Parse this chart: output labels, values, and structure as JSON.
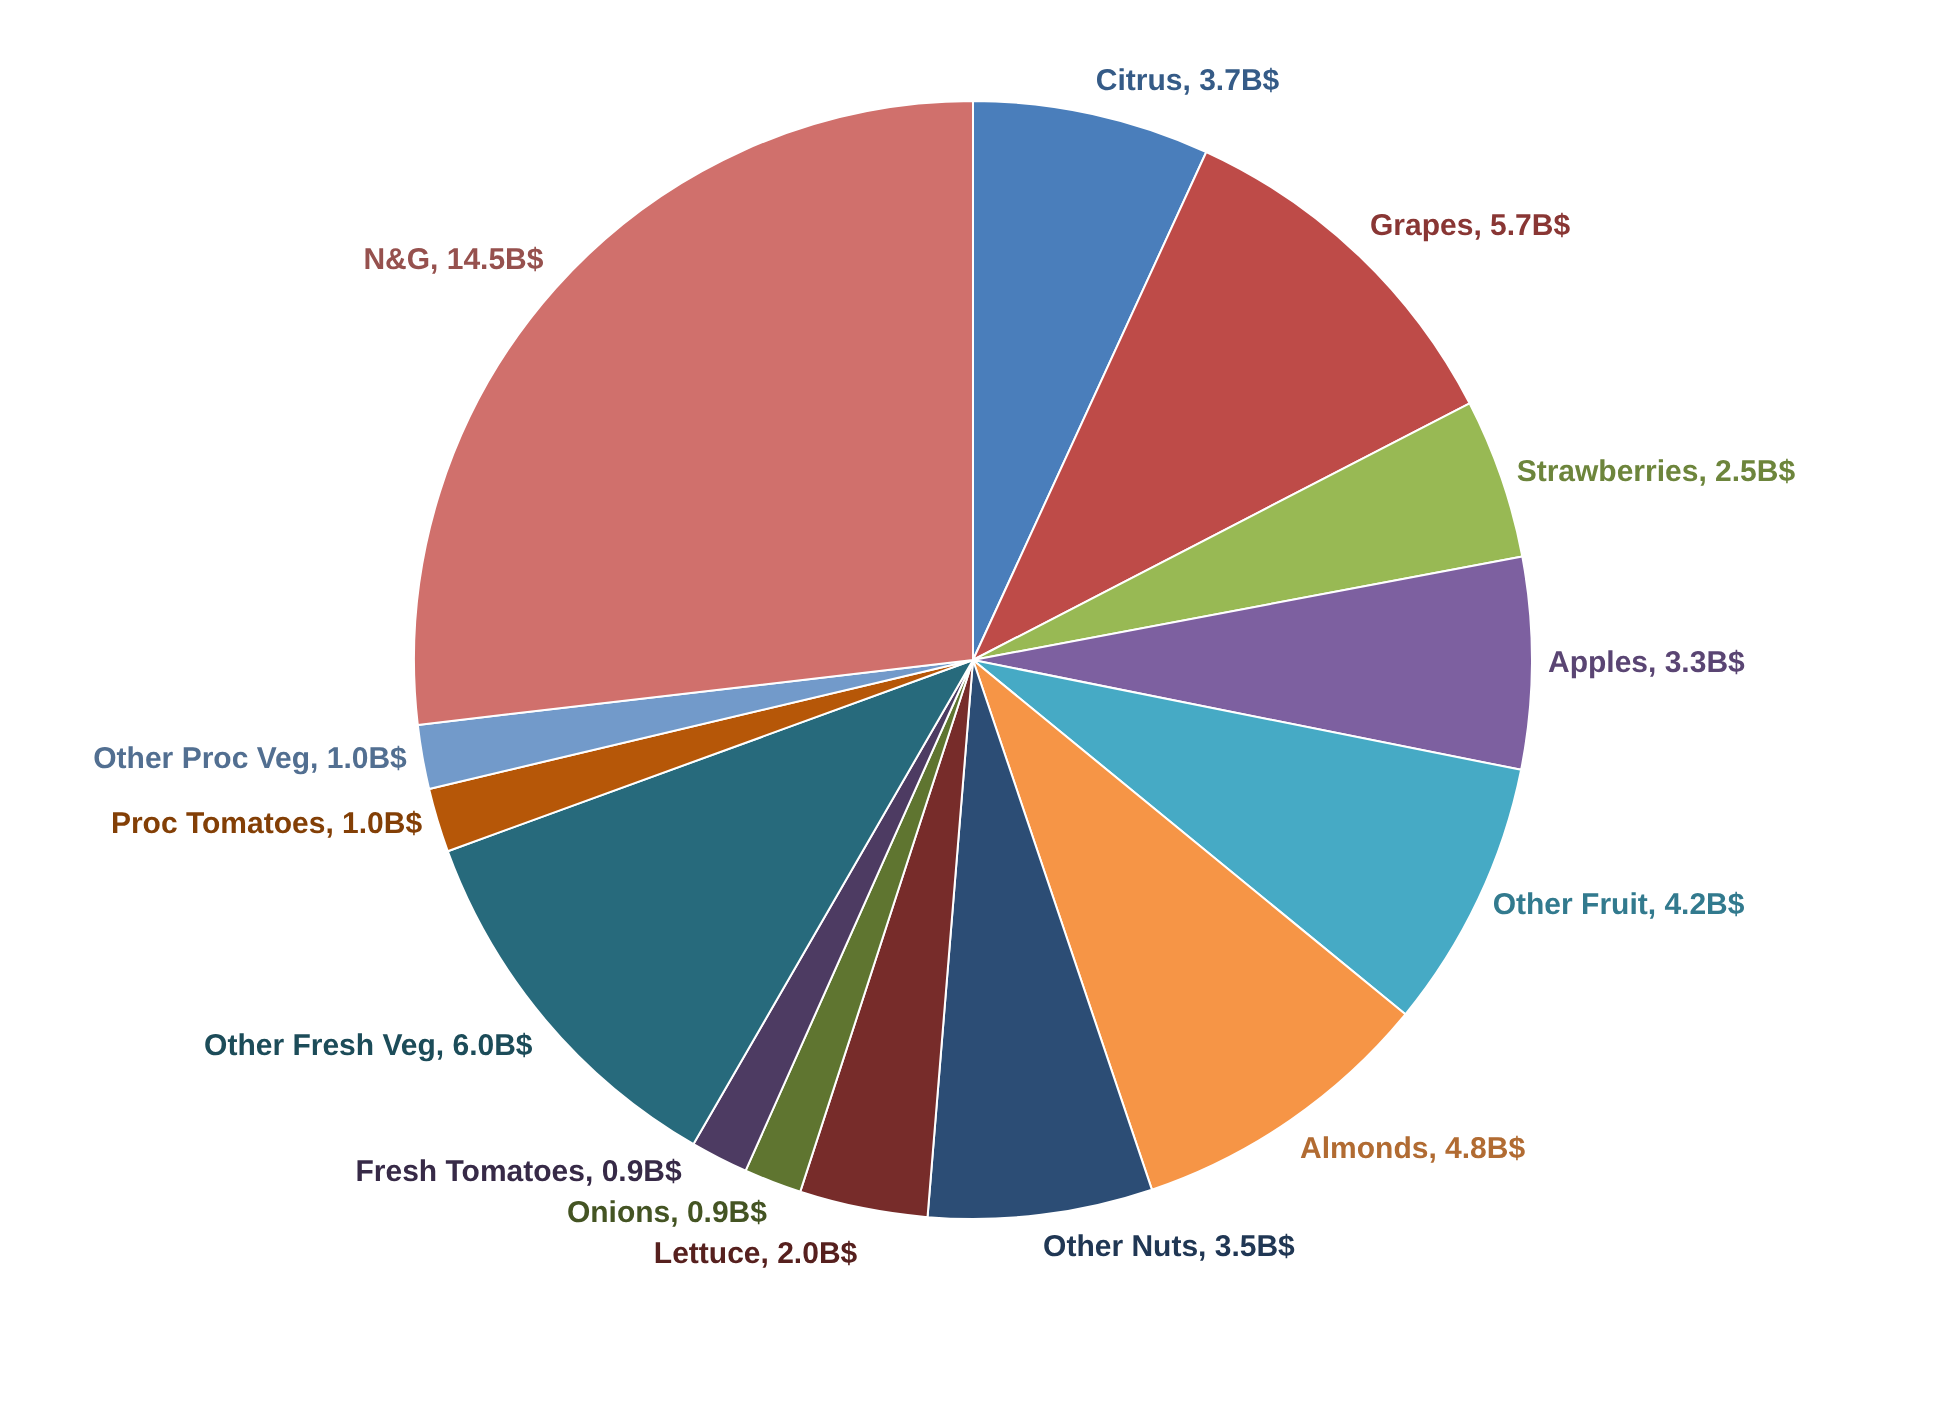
{
  "chart_data": {
    "type": "pie",
    "categories": [
      "Citrus",
      "Grapes",
      "Strawberries",
      "Apples",
      "Other Fruit",
      "Almonds",
      "Other Nuts",
      "Lettuce",
      "Onions",
      "Fresh Tomatoes",
      "Other Fresh Veg",
      "Proc Tomatoes",
      "Other Proc Veg",
      "N&G"
    ],
    "values": [
      3.7,
      5.7,
      2.5,
      3.3,
      4.2,
      4.8,
      3.5,
      2.0,
      0.9,
      0.9,
      6.0,
      1.0,
      1.0,
      14.5
    ],
    "value_labels": [
      "3.7B$",
      "5.7B$",
      "2.5B$",
      "3.3B$",
      "4.2B$",
      "4.8B$",
      "3.5B$",
      "2.0B$",
      "0.9B$",
      "0.9B$",
      "6.0B$",
      "1.0B$",
      "1.0B$",
      "14.5B$"
    ],
    "colors": [
      "#4a7ebb",
      "#be4b48",
      "#98b954",
      "#7d60a0",
      "#46aac5",
      "#f69546",
      "#2c4d75",
      "#772c2a",
      "#5f7530",
      "#4d3b62",
      "#276a7c",
      "#b65708",
      "#729aca",
      "#d0706c"
    ],
    "legend": false
  }
}
